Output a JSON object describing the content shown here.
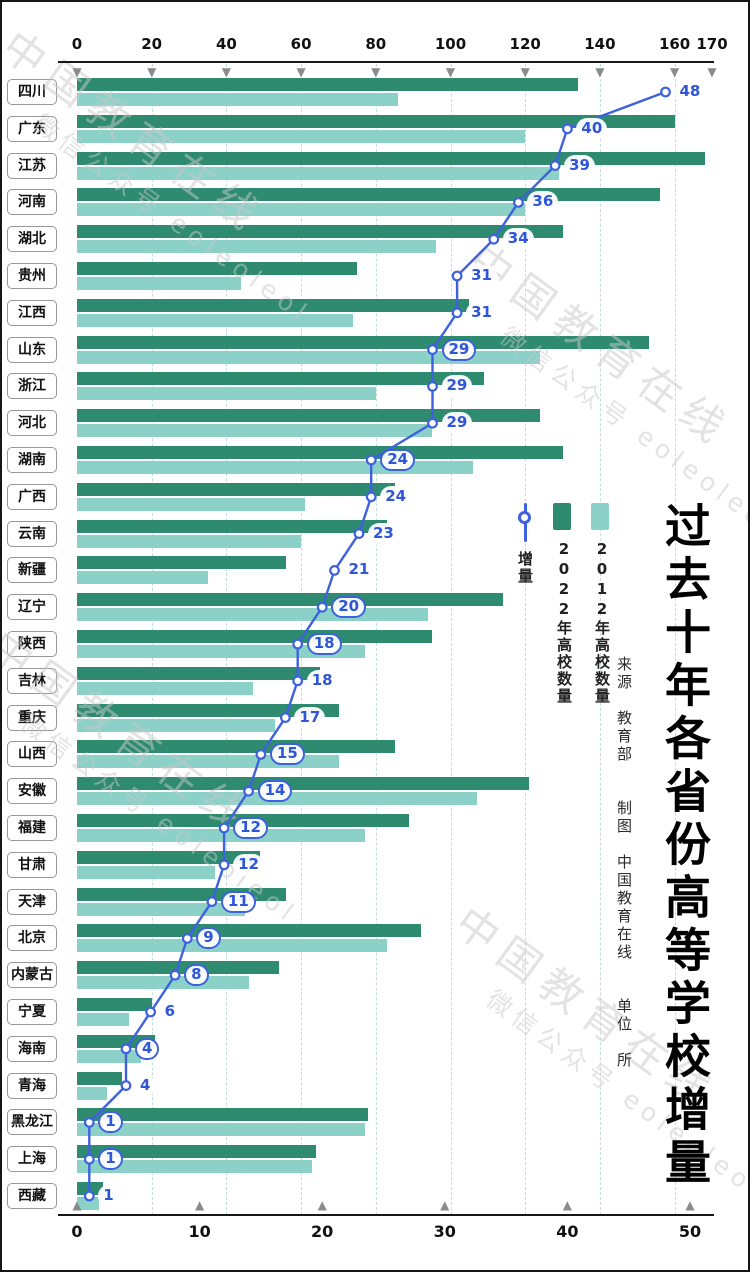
{
  "title": "过去十年各省份高等学校增量",
  "source_note": "来源　教育部　　制图　中国教育在线　　单位　所",
  "legend": {
    "increment_label": "增量",
    "series_2022_label": "2022年高校数量",
    "series_2012_label": "2012年高校数量"
  },
  "watermark": {
    "line1": "中国教育在线",
    "line2": "微信公众号 eoleoleol"
  },
  "colors": {
    "bar_2022": "#2E8B6F",
    "bar_2012": "#8BD1C8",
    "line": "#3E62DE",
    "label_blue": "#2F55D8",
    "grid": "#BFE0DA",
    "axis": "#161616",
    "tick_marker": "#8B8B8B",
    "watermark": "#C9C9C9"
  },
  "chart_data": {
    "type": "bar",
    "orientation": "horizontal",
    "unit": "所",
    "title": "过去十年各省份高等学校增量",
    "grid": "vertical-dashed",
    "legend_position": "middle-right",
    "categories": [
      "四川",
      "广东",
      "江苏",
      "河南",
      "湖北",
      "贵州",
      "江西",
      "山东",
      "浙江",
      "河北",
      "湖南",
      "广西",
      "云南",
      "新疆",
      "辽宁",
      "陕西",
      "吉林",
      "重庆",
      "山西",
      "安徽",
      "福建",
      "甘肃",
      "天津",
      "北京",
      "内蒙古",
      "宁夏",
      "海南",
      "青海",
      "黑龙江",
      "上海",
      "西藏"
    ],
    "series": [
      {
        "name": "2022年高校数量",
        "type": "bar",
        "values": [
          134,
          160,
          168,
          156,
          130,
          75,
          105,
          153,
          109,
          124,
          130,
          85,
          83,
          56,
          114,
          95,
          65,
          70,
          85,
          121,
          89,
          49,
          56,
          92,
          54,
          20,
          21,
          12,
          78,
          64,
          7
        ]
      },
      {
        "name": "2012年高校数量",
        "type": "bar",
        "values": [
          86,
          120,
          129,
          120,
          96,
          44,
          74,
          124,
          80,
          95,
          106,
          61,
          60,
          35,
          94,
          77,
          47,
          53,
          70,
          107,
          77,
          37,
          45,
          83,
          46,
          14,
          17,
          8,
          77,
          63,
          6
        ]
      },
      {
        "name": "增量",
        "type": "line",
        "values": [
          48,
          40,
          39,
          36,
          34,
          31,
          31,
          29,
          29,
          29,
          24,
          24,
          23,
          21,
          20,
          18,
          18,
          17,
          15,
          14,
          12,
          12,
          11,
          9,
          8,
          6,
          4,
          4,
          1,
          1,
          1
        ]
      }
    ],
    "top_axis": {
      "range": [
        0,
        170
      ],
      "ticks": [
        0,
        20,
        40,
        60,
        80,
        100,
        120,
        140,
        160,
        170
      ]
    },
    "bottom_axis": {
      "range": [
        0,
        50
      ],
      "ticks": [
        0,
        10,
        20,
        30,
        40,
        50
      ]
    }
  }
}
